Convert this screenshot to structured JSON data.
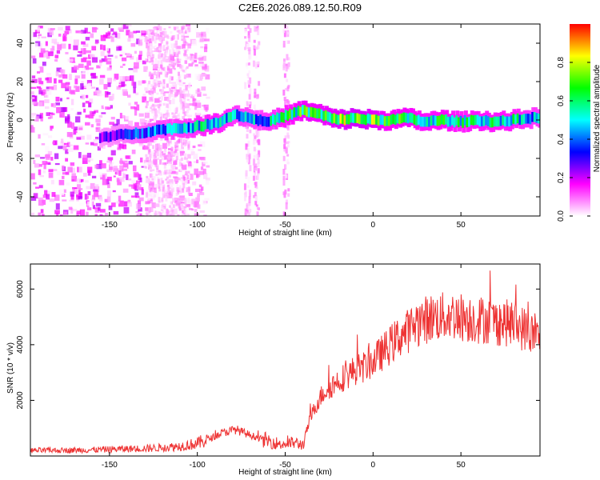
{
  "title": "C2E6.2026.089.12.50.R09",
  "colors": {
    "snr_line": "#ee3333",
    "axis": "#000000",
    "colormap": [
      "#ffffff",
      "#ff00ff",
      "#0000ff",
      "#00ffff",
      "#00ff00",
      "#ffff00",
      "#ff0000"
    ]
  },
  "chart_data": [
    {
      "type": "heatmap",
      "title": "C2E6.2026.089.12.50.R09",
      "xlabel": "Height of straight line (km)",
      "ylabel": "Frequency (Hz)",
      "xlim": [
        -195,
        95
      ],
      "ylim": [
        -50,
        50
      ],
      "x_ticks": [
        -150,
        -100,
        -50,
        0,
        50
      ],
      "x_tick_labels": [
        "-150",
        "-100",
        "-50",
        "0",
        "50"
      ],
      "y_ticks": [
        -40,
        -20,
        0,
        20,
        40
      ],
      "y_tick_labels": [
        "-40",
        "-20",
        "0",
        "20",
        "40"
      ],
      "colorbar": {
        "label": "Normalized spectral amplitude",
        "range": [
          0,
          1
        ],
        "ticks": [
          0.0,
          0.2,
          0.4,
          0.6,
          0.8
        ],
        "tick_labels": [
          "0.0",
          "0.2",
          "0.4",
          "0.6",
          "0.8"
        ]
      },
      "ridge": {
        "x": [
          -155,
          -135,
          -120,
          -105,
          -90,
          -78,
          -70,
          -60,
          -50,
          -40,
          -30,
          -20,
          -10,
          0,
          10,
          20,
          30,
          40,
          50,
          60,
          70,
          80,
          90
        ],
        "freq": [
          -9,
          -7,
          -5,
          -4,
          -2,
          3,
          1,
          -1,
          2,
          5,
          3,
          0,
          1,
          0,
          0,
          1,
          -1,
          0,
          -1,
          0,
          -1,
          0,
          1
        ],
        "amplitude": [
          0.3,
          0.45,
          0.55,
          0.6,
          0.7,
          0.6,
          0.55,
          0.6,
          0.7,
          0.8,
          0.8,
          0.85,
          0.9,
          0.85,
          0.75,
          0.8,
          0.7,
          0.75,
          0.7,
          0.7,
          0.7,
          0.7,
          0.6
        ]
      }
    },
    {
      "type": "line",
      "xlabel": "Height of straight line (km)",
      "ylabel": "SNR (10 * v/v)",
      "xlim": [
        -195,
        95
      ],
      "ylim": [
        0,
        6900
      ],
      "x_ticks": [
        -150,
        -100,
        -50,
        0,
        50
      ],
      "x_tick_labels": [
        "-150",
        "-100",
        "-50",
        "0",
        "50"
      ],
      "y_ticks": [
        2000,
        4000,
        6000
      ],
      "y_tick_labels": [
        "2000",
        "4000",
        "6000"
      ],
      "series": [
        {
          "name": "SNR",
          "x": [
            -195,
            -180,
            -160,
            -145,
            -130,
            -120,
            -110,
            -100,
            -92,
            -85,
            -78,
            -70,
            -60,
            -52,
            -45,
            -40,
            -36,
            -32,
            -28,
            -24,
            -20,
            -15,
            -10,
            -5,
            0,
            5,
            10,
            15,
            20,
            25,
            30,
            35,
            40,
            45,
            50,
            55,
            60,
            65,
            70,
            75,
            80,
            85,
            90,
            95
          ],
          "values": [
            200,
            200,
            220,
            250,
            270,
            300,
            350,
            450,
            650,
            850,
            950,
            750,
            550,
            420,
            480,
            400,
            1300,
            1900,
            2300,
            2500,
            2700,
            2900,
            3100,
            3200,
            3400,
            3700,
            4000,
            4300,
            4500,
            4800,
            4900,
            5000,
            5000,
            5050,
            5000,
            4950,
            4900,
            4900,
            4800,
            4800,
            4700,
            4600,
            4400,
            4200
          ]
        }
      ]
    }
  ]
}
